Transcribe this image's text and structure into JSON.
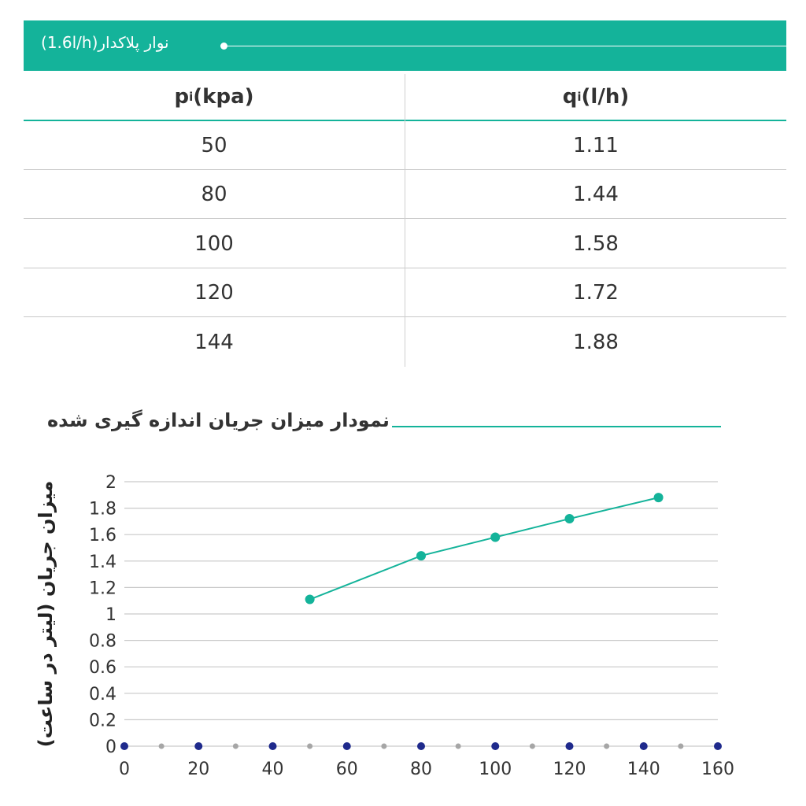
{
  "banner": {
    "title": "نوار پلاکدار(1.6l/h)"
  },
  "table": {
    "headers": [
      {
        "base": "p",
        "sub": "i",
        "unit": "(kpa)"
      },
      {
        "base": "q",
        "sub": "i",
        "unit": "(l/h)"
      }
    ],
    "rows": [
      [
        "50",
        "1.11"
      ],
      [
        "80",
        "1.44"
      ],
      [
        "100",
        "1.58"
      ],
      [
        "120",
        "1.72"
      ],
      [
        "144",
        "1.88"
      ]
    ]
  },
  "chart_title": "نمودار میزان جریان اندازه گیری شده",
  "colors": {
    "accent": "#14b39a",
    "point_teal": "#14b39a",
    "axis_dot_navy": "#1f2a8c",
    "axis_dot_grey": "#a6a6a6"
  },
  "chart_data": {
    "type": "line",
    "title": "نمودار میزان جریان اندازه گیری شده",
    "xlabel": "",
    "ylabel": "میزان جریان (لیتر در ساعت)",
    "xlim": [
      0,
      160
    ],
    "ylim": [
      0,
      2
    ],
    "x_ticks": [
      "0",
      "20",
      "40",
      "60",
      "80",
      "100",
      "120",
      "140",
      "160"
    ],
    "y_ticks": [
      "0",
      "0.2",
      "0.4",
      "0.6",
      "0.8",
      "1",
      "1.2",
      "1.4",
      "1.6",
      "1.8",
      "2"
    ],
    "grid": true,
    "series": [
      {
        "x": [
          50,
          80,
          100,
          120,
          144
        ],
        "y": [
          1.11,
          1.44,
          1.58,
          1.72,
          1.88
        ]
      }
    ],
    "axis_markers": [
      0,
      10,
      20,
      30,
      40,
      50,
      60,
      70,
      80,
      90,
      100,
      110,
      120,
      130,
      140,
      150,
      160
    ]
  }
}
